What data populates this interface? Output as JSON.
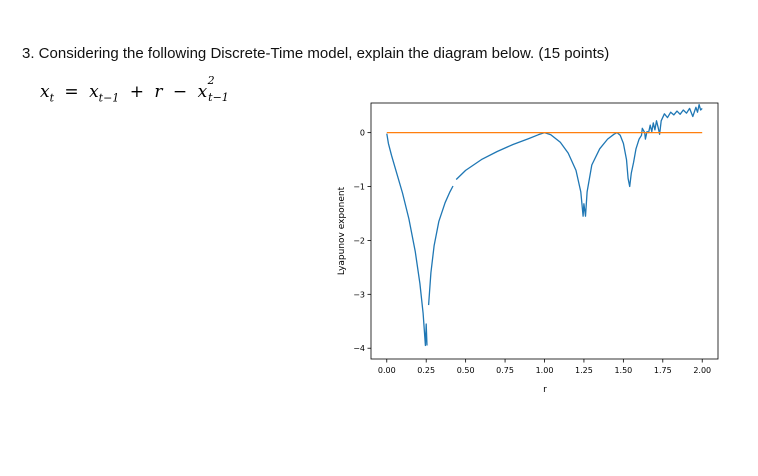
{
  "question": {
    "text": "3. Considering the following Discrete-Time model, explain the diagram below. (15 points)"
  },
  "equation": {
    "lhs": "x",
    "lhs_sub": "t",
    "term1": "x",
    "term1_sub": "t−1",
    "term2": "r",
    "term3": "x",
    "term3_sup": "2",
    "term3_sub": "t−1",
    "eq": "=",
    "plus": "+",
    "minus": "−"
  },
  "chart_data": {
    "type": "line",
    "title": "",
    "xlabel": "r",
    "ylabel": "Lyapunov exponent",
    "xlim": [
      -0.1,
      2.1
    ],
    "ylim": [
      -4.2,
      0.55
    ],
    "xticks": [
      0.0,
      0.25,
      0.5,
      0.75,
      1.0,
      1.25,
      1.5,
      1.75,
      2.0
    ],
    "xtick_labels": [
      "0.00",
      "0.25",
      "0.50",
      "0.75",
      "1.00",
      "1.25",
      "1.50",
      "1.75",
      "2.00"
    ],
    "yticks": [
      0,
      -1,
      -2,
      -3,
      -4
    ],
    "ytick_labels": [
      "0",
      "−1",
      "−2",
      "−3",
      "−4"
    ],
    "grid": false,
    "series": [
      {
        "color": "#1f77b4",
        "segments": [
          [
            [
              0.0,
              -0.02
            ],
            [
              0.01,
              -0.2
            ],
            [
              0.03,
              -0.42
            ],
            [
              0.06,
              -0.72
            ],
            [
              0.1,
              -1.12
            ],
            [
              0.14,
              -1.6
            ],
            [
              0.18,
              -2.2
            ],
            [
              0.21,
              -2.8
            ],
            [
              0.23,
              -3.35
            ],
            [
              0.245,
              -3.95
            ],
            [
              0.25,
              -3.55
            ],
            [
              0.255,
              -3.95
            ]
          ],
          [
            [
              0.265,
              -3.2
            ],
            [
              0.28,
              -2.6
            ],
            [
              0.3,
              -2.1
            ],
            [
              0.33,
              -1.65
            ],
            [
              0.37,
              -1.3
            ],
            [
              0.4,
              -1.1
            ],
            [
              0.42,
              -0.99
            ]
          ],
          [
            [
              0.44,
              -0.87
            ],
            [
              0.5,
              -0.7
            ],
            [
              0.6,
              -0.5
            ],
            [
              0.7,
              -0.35
            ],
            [
              0.8,
              -0.22
            ],
            [
              0.9,
              -0.11
            ],
            [
              0.96,
              -0.04
            ],
            [
              1.0,
              0.0
            ]
          ],
          [
            [
              1.0,
              0.0
            ],
            [
              1.04,
              -0.04
            ],
            [
              1.1,
              -0.18
            ],
            [
              1.15,
              -0.38
            ],
            [
              1.2,
              -0.7
            ],
            [
              1.23,
              -1.1
            ],
            [
              1.245,
              -1.55
            ],
            [
              1.25,
              -1.32
            ],
            [
              1.26,
              -1.55
            ],
            [
              1.27,
              -1.1
            ],
            [
              1.3,
              -0.6
            ],
            [
              1.35,
              -0.3
            ],
            [
              1.4,
              -0.12
            ],
            [
              1.44,
              -0.03
            ],
            [
              1.46,
              0.0
            ],
            [
              1.48,
              -0.05
            ],
            [
              1.5,
              -0.2
            ],
            [
              1.52,
              -0.5
            ],
            [
              1.53,
              -0.85
            ],
            [
              1.54,
              -1.0
            ],
            [
              1.55,
              -0.75
            ],
            [
              1.565,
              -0.55
            ],
            [
              1.58,
              -0.3
            ],
            [
              1.6,
              -0.12
            ],
            [
              1.615,
              -0.05
            ],
            [
              1.62,
              0.08
            ],
            [
              1.635,
              0.0
            ],
            [
              1.64,
              -0.12
            ],
            [
              1.65,
              0.02
            ],
            [
              1.66,
              0.0
            ],
            [
              1.67,
              0.14
            ],
            [
              1.68,
              0.02
            ],
            [
              1.69,
              0.18
            ],
            [
              1.7,
              0.05
            ],
            [
              1.71,
              0.22
            ],
            [
              1.72,
              0.1
            ],
            [
              1.73,
              -0.03
            ],
            [
              1.74,
              0.22
            ],
            [
              1.76,
              0.35
            ],
            [
              1.78,
              0.28
            ],
            [
              1.8,
              0.38
            ],
            [
              1.82,
              0.33
            ],
            [
              1.84,
              0.4
            ],
            [
              1.86,
              0.34
            ],
            [
              1.88,
              0.42
            ],
            [
              1.9,
              0.36
            ],
            [
              1.92,
              0.45
            ],
            [
              1.94,
              0.3
            ],
            [
              1.96,
              0.47
            ],
            [
              1.97,
              0.38
            ],
            [
              1.98,
              0.52
            ],
            [
              1.99,
              0.42
            ],
            [
              2.0,
              0.45
            ]
          ]
        ]
      },
      {
        "color": "#ff7f0e",
        "segments": [
          [
            [
              0.0,
              0.0
            ],
            [
              2.0,
              0.0
            ]
          ]
        ]
      }
    ]
  }
}
